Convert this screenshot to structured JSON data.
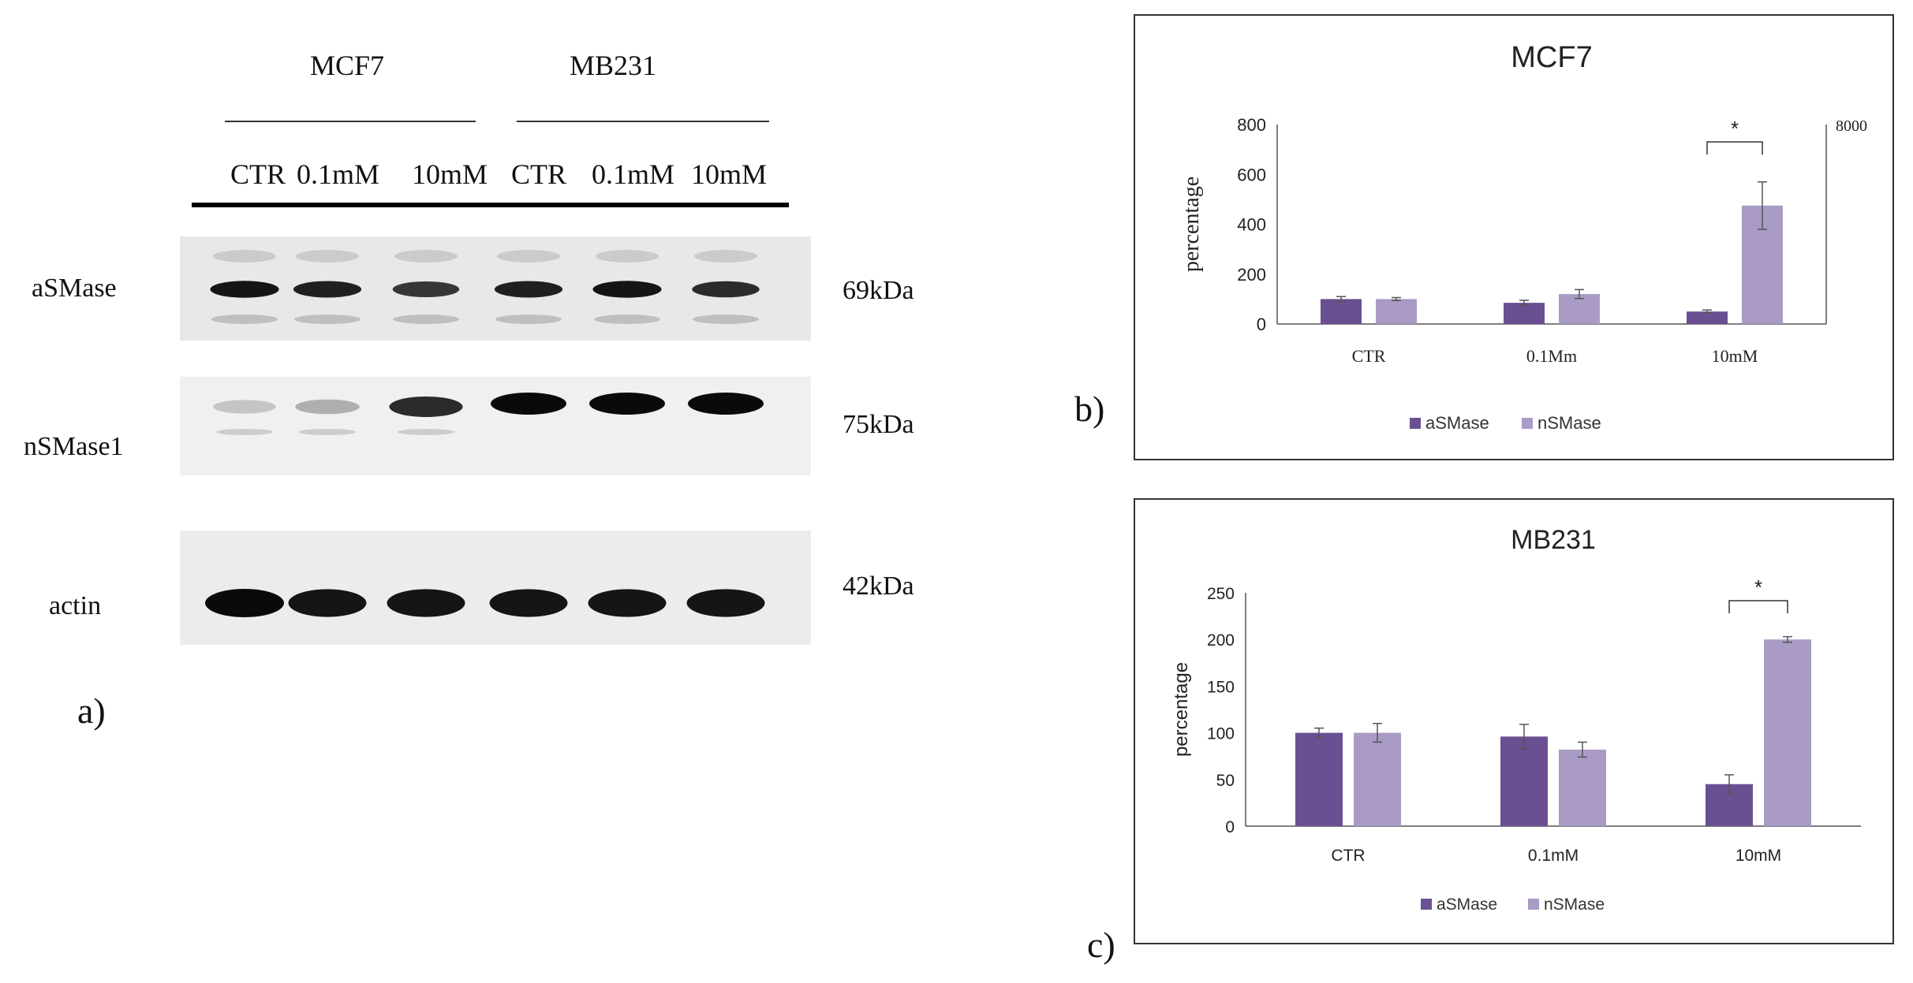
{
  "western_blot": {
    "group_labels": [
      "MCF7",
      "MB231"
    ],
    "lane_labels": [
      "CTR",
      "0.1mM",
      "10mM",
      "CTR",
      "0.1mM",
      "10mM"
    ],
    "rows": [
      {
        "label": "aSMase",
        "kda": "69kDa",
        "intensity": [
          0.95,
          0.9,
          0.8,
          0.9,
          0.95,
          0.85
        ]
      },
      {
        "label": "nSMase1",
        "kda": "75kDa",
        "intensity": [
          0.15,
          0.25,
          0.85,
          1.0,
          1.0,
          1.0
        ]
      },
      {
        "label": "actin",
        "kda": "42kDa",
        "intensity": [
          1.0,
          0.95,
          0.95,
          0.95,
          0.95,
          0.95
        ]
      }
    ],
    "panel_label": "a)"
  },
  "panel_labels": {
    "b": "b)",
    "c": "c)"
  },
  "colors": {
    "aSMase": "#6a5092",
    "nSMase": "#a99bc6",
    "axis": "#555555",
    "text": "#222222"
  },
  "chart_data": [
    {
      "type": "bar",
      "title": "MCF7",
      "ylabel": "percentage",
      "categories": [
        "CTR",
        "0.1Mm",
        "10mM"
      ],
      "ylim": [
        0,
        800
      ],
      "yticks": [
        "0",
        "200",
        "400",
        "600",
        "800"
      ],
      "secondary_tick_label": "8000",
      "series": [
        {
          "name": "aSMase",
          "values": [
            100,
            85,
            50
          ],
          "errors": [
            10,
            10,
            6
          ]
        },
        {
          "name": "nSMase",
          "values": [
            100,
            120,
            475
          ],
          "errors": [
            6,
            18,
            95
          ]
        }
      ],
      "significance": {
        "category": "10mM",
        "mark": "*"
      },
      "legend_position": "bottom"
    },
    {
      "type": "bar",
      "title": "MB231",
      "ylabel": "percentage",
      "categories": [
        "CTR",
        "0.1mM",
        "10mM"
      ],
      "ylim": [
        0,
        250
      ],
      "yticks": [
        "0",
        "50",
        "100",
        "150",
        "200",
        "250"
      ],
      "series": [
        {
          "name": "aSMase",
          "values": [
            100,
            96,
            45
          ],
          "errors": [
            5,
            13,
            10
          ]
        },
        {
          "name": "nSMase",
          "values": [
            100,
            82,
            200
          ],
          "errors": [
            10,
            8,
            3
          ]
        }
      ],
      "significance": {
        "category": "10mM",
        "mark": "*"
      },
      "legend_position": "bottom"
    }
  ]
}
